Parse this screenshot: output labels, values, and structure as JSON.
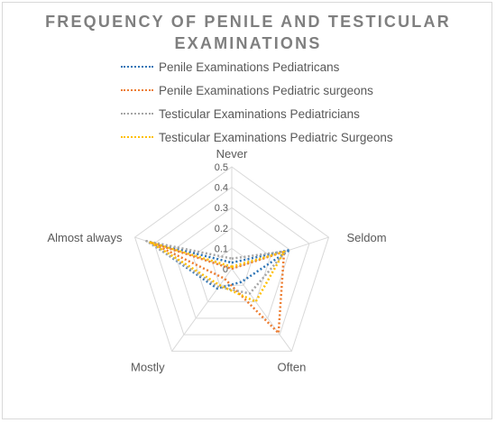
{
  "chart_data": {
    "type": "radar",
    "title_line1": "FREQUENCY OF PENILE AND TESTICULAR",
    "title_line2": "EXAMINATIONS",
    "categories": [
      "Never",
      "Seldom",
      "Often",
      "Mostly",
      "Almost always"
    ],
    "r_ticks": [
      "0",
      "0.1",
      "0.2",
      "0.3",
      "0.4",
      "0.5"
    ],
    "rlim": [
      0,
      0.5
    ],
    "legend_position": "top",
    "series": [
      {
        "name": "Penile Examinations Pediatricans",
        "color": "#2e75b6",
        "values": [
          0.03,
          0.3,
          0.08,
          0.12,
          0.43
        ]
      },
      {
        "name": "Penile Examinations Pediatric surgeons",
        "color": "#ed7d31",
        "values": [
          0.0,
          0.27,
          0.39,
          0.06,
          0.42
        ]
      },
      {
        "name": "Testicular Examinations Pediatricians",
        "color": "#a5a5a5",
        "values": [
          0.05,
          0.28,
          0.15,
          0.11,
          0.44
        ]
      },
      {
        "name": "Testicular Examinations Pediatric Surgeons",
        "color": "#ffc000",
        "values": [
          0.01,
          0.27,
          0.2,
          0.1,
          0.42
        ]
      }
    ]
  }
}
